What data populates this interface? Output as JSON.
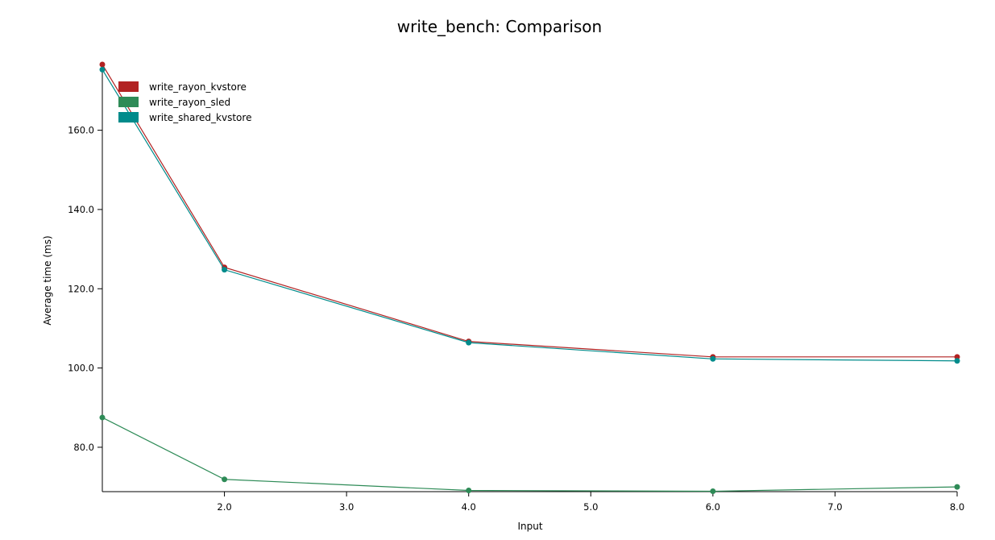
{
  "chart_data": {
    "type": "line",
    "title": "write_bench: Comparison",
    "xlabel": "Input",
    "ylabel": "Average time (ms)",
    "xlim": [
      1.0,
      8.0
    ],
    "ylim": [
      68.8,
      177.0
    ],
    "x_ticks": [
      2.0,
      3.0,
      4.0,
      5.0,
      6.0,
      7.0,
      8.0
    ],
    "x_tick_labels": [
      "2.0",
      "3.0",
      "4.0",
      "5.0",
      "6.0",
      "7.0",
      "8.0"
    ],
    "y_ticks": [
      80.0,
      100.0,
      120.0,
      140.0,
      160.0
    ],
    "y_tick_labels": [
      "80.0",
      "100.0",
      "120.0",
      "140.0",
      "160.0"
    ],
    "grid": false,
    "legend_position": "top-left",
    "x": [
      1.0,
      2.0,
      4.0,
      6.0,
      8.0
    ],
    "series": [
      {
        "name": "write_rayon_kvstore",
        "color": "#b22222",
        "values": [
          176.6,
          125.4,
          106.7,
          102.8,
          102.8
        ]
      },
      {
        "name": "write_rayon_sled",
        "color": "#2e8b57",
        "values": [
          87.5,
          71.9,
          69.1,
          68.9,
          70.0
        ]
      },
      {
        "name": "write_shared_kvstore",
        "color": "#008b8b",
        "values": [
          175.3,
          124.8,
          106.4,
          102.3,
          101.8
        ]
      }
    ]
  }
}
